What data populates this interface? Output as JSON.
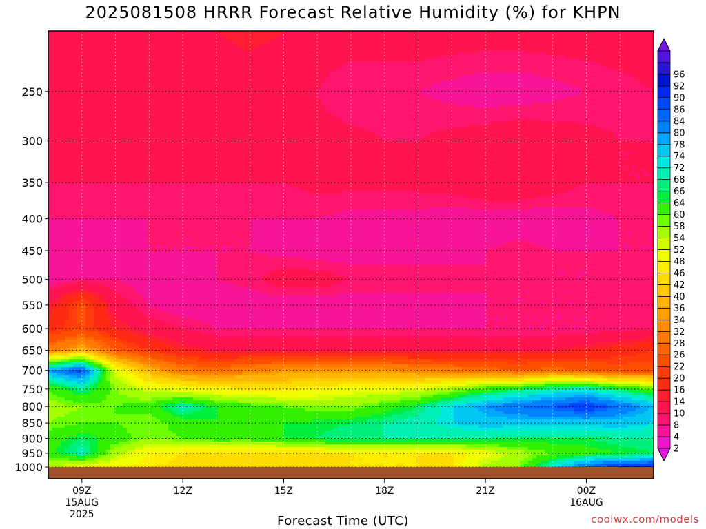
{
  "title": "2025081508 HRRR Forecast Relative Humidity (%) for KHPN",
  "credit": "coolwx.com/models",
  "chart_data": {
    "type": "heatmap",
    "title": "2025081508 HRRR Forecast Relative Humidity (%) for KHPN",
    "xlabel": "Forecast Time (UTC)",
    "ylabel": "",
    "x_hours": [
      8,
      9,
      10,
      11,
      12,
      13,
      14,
      15,
      16,
      17,
      18,
      19,
      20,
      21,
      22,
      23,
      24,
      25,
      26
    ],
    "x_ticks": [
      {
        "hour": 9,
        "lines": [
          "09Z",
          "15AUG",
          "2025"
        ]
      },
      {
        "hour": 12,
        "lines": [
          "12Z"
        ]
      },
      {
        "hour": 15,
        "lines": [
          "15Z"
        ]
      },
      {
        "hour": 18,
        "lines": [
          "18Z"
        ]
      },
      {
        "hour": 21,
        "lines": [
          "21Z"
        ]
      },
      {
        "hour": 24,
        "lines": [
          "00Z",
          "16AUG"
        ]
      }
    ],
    "y_levels": [
      1000,
      950,
      900,
      850,
      800,
      750,
      700,
      650,
      600,
      550,
      500,
      450,
      400,
      350,
      300,
      250,
      200
    ],
    "y_ticks": [
      1000,
      950,
      900,
      850,
      800,
      750,
      700,
      650,
      600,
      550,
      500,
      450,
      400,
      350,
      300,
      250
    ],
    "y_scale": "log",
    "ylim": [
      1000,
      200
    ],
    "xlim": [
      8,
      26
    ],
    "grid": true,
    "ground_color": "#a0522d",
    "values": [
      [
        54,
        50,
        48,
        46,
        45,
        44,
        44,
        44,
        45,
        46,
        46,
        46,
        45,
        55,
        58,
        72,
        86,
        92,
        94
      ],
      [
        62,
        70,
        56,
        48,
        46,
        45,
        44,
        44,
        45,
        46,
        46,
        46,
        46,
        50,
        56,
        60,
        62,
        64,
        66
      ],
      [
        62,
        66,
        62,
        58,
        60,
        62,
        62,
        64,
        66,
        68,
        68,
        68,
        68,
        68,
        66,
        66,
        66,
        68,
        68
      ],
      [
        58,
        60,
        60,
        58,
        62,
        64,
        64,
        64,
        65,
        66,
        68,
        70,
        74,
        76,
        76,
        76,
        76,
        76,
        74
      ],
      [
        56,
        58,
        60,
        62,
        70,
        64,
        62,
        60,
        58,
        58,
        62,
        66,
        74,
        80,
        84,
        86,
        90,
        84,
        78
      ],
      [
        60,
        68,
        58,
        52,
        50,
        48,
        46,
        46,
        48,
        50,
        50,
        52,
        56,
        62,
        66,
        70,
        72,
        66,
        60
      ],
      [
        80,
        88,
        52,
        38,
        30,
        28,
        32,
        34,
        34,
        34,
        34,
        32,
        30,
        28,
        26,
        28,
        26,
        24,
        24
      ],
      [
        30,
        38,
        26,
        20,
        16,
        14,
        14,
        13,
        13,
        13,
        13,
        13,
        13,
        14,
        14,
        14,
        16,
        18,
        20
      ],
      [
        18,
        22,
        16,
        12,
        10,
        8,
        8,
        8,
        8,
        8,
        8,
        8,
        8,
        8,
        8,
        8,
        8,
        9,
        10
      ],
      [
        14,
        24,
        12,
        8,
        6,
        6,
        6,
        6,
        6,
        6,
        6,
        6,
        7,
        8,
        8,
        8,
        8,
        9,
        10
      ],
      [
        6,
        8,
        8,
        6,
        7,
        8,
        9,
        12,
        12,
        10,
        10,
        10,
        9,
        8,
        8,
        8,
        8,
        9,
        10
      ],
      [
        5,
        6,
        6,
        8,
        8,
        8,
        8,
        7,
        6,
        6,
        6,
        6,
        7,
        8,
        9,
        8,
        8,
        8,
        8
      ],
      [
        8,
        8,
        8,
        8,
        8,
        8,
        8,
        8,
        8,
        7,
        7,
        7,
        6,
        6,
        6,
        6,
        7,
        8,
        8
      ],
      [
        10,
        10,
        10,
        10,
        10,
        10,
        10,
        10,
        11,
        11,
        11,
        11,
        12,
        14,
        14,
        12,
        10,
        10,
        10
      ],
      [
        12,
        12,
        12,
        12,
        11,
        11,
        11,
        11,
        11,
        11,
        10,
        10,
        11,
        12,
        13,
        12,
        11,
        10,
        10
      ],
      [
        12,
        12,
        12,
        12,
        11,
        10,
        10,
        10,
        10,
        8,
        8,
        8,
        7,
        6,
        6,
        7,
        8,
        9,
        10
      ],
      [
        12,
        12,
        14,
        14,
        13,
        14,
        16,
        14,
        12,
        12,
        12,
        12,
        12,
        12,
        12,
        12,
        12,
        12,
        12
      ]
    ],
    "colorbar": {
      "ticks": [
        2,
        4,
        8,
        10,
        14,
        16,
        20,
        22,
        26,
        28,
        32,
        34,
        36,
        40,
        42,
        46,
        48,
        52,
        54,
        58,
        60,
        64,
        66,
        68,
        72,
        74,
        78,
        80,
        84,
        86,
        90,
        92,
        96
      ],
      "colors": [
        "#e816e8",
        "#f014c8",
        "#f81496",
        "#ff146e",
        "#ff1450",
        "#ff1e32",
        "#ff2a14",
        "#ff3c0a",
        "#ff5000",
        "#ff6600",
        "#ff7a00",
        "#ff8c00",
        "#ffa000",
        "#ffb400",
        "#ffc800",
        "#ffdc00",
        "#ffee00",
        "#f0ff00",
        "#d2ff00",
        "#a6ff00",
        "#6eff00",
        "#32f000",
        "#00ee3c",
        "#00f07c",
        "#00f0b4",
        "#00e8e0",
        "#00c8f0",
        "#00a6ff",
        "#0082ff",
        "#0064ff",
        "#0046ff",
        "#0028f0",
        "#0014d2",
        "#2814d2",
        "#5014dc",
        "#7814e8"
      ]
    }
  }
}
